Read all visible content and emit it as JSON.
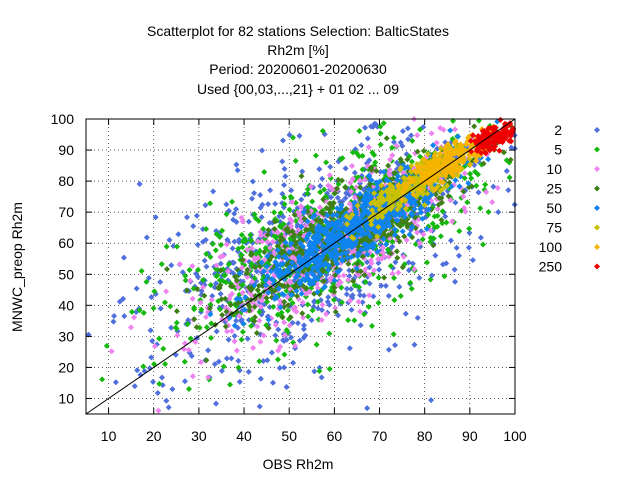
{
  "chart_data": {
    "type": "scatter",
    "title_lines": [
      "Scatterplot for   82 stations Selection: BalticStates",
      "Rh2m [%]",
      "Period: 20200601-20200630",
      "Used {00,03,...,21} + 01 02 ... 09"
    ],
    "xlabel": "OBS Rh2m",
    "ylabel": "MNWC_preop Rh2m",
    "xlim": [
      5,
      100
    ],
    "ylim": [
      5,
      100
    ],
    "xticks": [
      10,
      20,
      30,
      40,
      50,
      60,
      70,
      80,
      90,
      100
    ],
    "yticks": [
      10,
      20,
      30,
      40,
      50,
      60,
      70,
      80,
      90,
      100
    ],
    "grid": true,
    "legend_position": "right",
    "diagonal": [
      [
        5,
        5
      ],
      [
        100,
        100
      ]
    ],
    "series": [
      {
        "name": "2",
        "color": "#4f6fdc",
        "marker": "diamond",
        "cloud": {
          "center": [
            55,
            57
          ],
          "spread_along": 26,
          "spread_across": 13
        }
      },
      {
        "name": "5",
        "color": "#15b80d",
        "marker": "diamond",
        "cloud": {
          "center": [
            58,
            60
          ],
          "spread_along": 22,
          "spread_across": 10
        }
      },
      {
        "name": "10",
        "color": "#ee82ee",
        "marker": "diamond",
        "cloud": {
          "center": [
            60,
            61
          ],
          "spread_along": 20,
          "spread_across": 7.5
        }
      },
      {
        "name": "25",
        "color": "#3f7f17",
        "marker": "diamond",
        "cloud": {
          "center": [
            62,
            63
          ],
          "spread_along": 18,
          "spread_across": 5.5
        }
      },
      {
        "name": "50",
        "color": "#0f83f0",
        "marker": "diamond",
        "cloud": {
          "center": [
            66,
            66
          ],
          "spread_along": 15,
          "spread_across": 3.6
        }
      },
      {
        "name": "75",
        "color": "#c8c000",
        "marker": "diamond",
        "cloud": {
          "center": [
            78,
            79
          ],
          "spread_along": 8,
          "spread_across": 2.2
        }
      },
      {
        "name": "100",
        "color": "#f4b400",
        "marker": "diamond",
        "cloud": {
          "center": [
            85,
            86
          ],
          "spread_along": 6,
          "spread_across": 1.8
        }
      },
      {
        "name": "250",
        "color": "#ee0000",
        "marker": "diamond",
        "cloud": {
          "center": [
            95,
            94
          ],
          "spread_along": 3,
          "spread_across": 1.5
        }
      }
    ]
  }
}
